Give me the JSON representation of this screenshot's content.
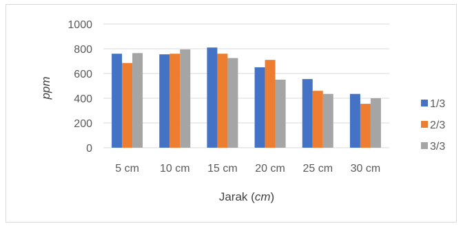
{
  "chart_data": {
    "type": "bar",
    "categories": [
      "5 cm",
      "10 cm",
      "15 cm",
      "20 cm",
      "25 cm",
      "30 cm"
    ],
    "series": [
      {
        "name": "1/3",
        "color": "#4472C4",
        "values": [
          760,
          755,
          810,
          650,
          555,
          435
        ]
      },
      {
        "name": "2/3",
        "color": "#ED7D31",
        "values": [
          685,
          760,
          760,
          710,
          460,
          355
        ]
      },
      {
        "name": "3/3",
        "color": "#A5A5A5",
        "values": [
          765,
          795,
          725,
          550,
          435,
          400
        ]
      }
    ],
    "title": "",
    "xlabel_main": "Jarak (",
    "xlabel_italic": "cm",
    "xlabel_end": ")",
    "ylabel": "ppm",
    "ylim": [
      0,
      1000
    ],
    "yticks": [
      "0",
      "200",
      "400",
      "600",
      "800",
      "1000"
    ],
    "grid": true,
    "legend_position": "right"
  }
}
